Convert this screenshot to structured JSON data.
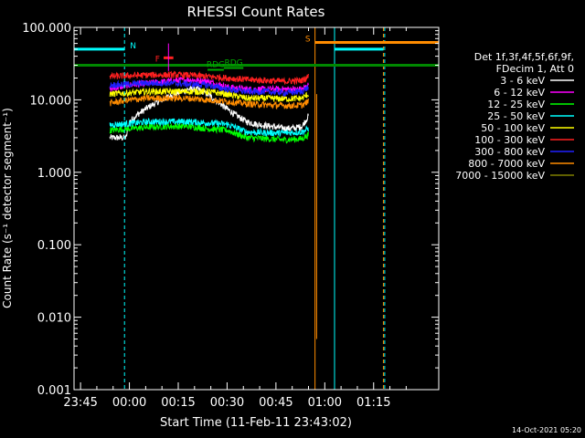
{
  "chart_data": {
    "type": "line",
    "title": "RHESSI Count Rates",
    "xlabel": "Start Time (11-Feb-11 23:43:02)",
    "ylabel": "Count Rate (s⁻¹ detector segment⁻¹)",
    "yscale": "log",
    "ylim": [
      0.001,
      100
    ],
    "xlim_min": [
      -17,
      95
    ],
    "x_tick_labels": [
      {
        "t": -15,
        "label": "23:45"
      },
      {
        "t": 0,
        "label": "00:00"
      },
      {
        "t": 15,
        "label": "00:15"
      },
      {
        "t": 30,
        "label": "00:30"
      },
      {
        "t": 45,
        "label": "00:45"
      },
      {
        "t": 60,
        "label": "01:00"
      },
      {
        "t": 75,
        "label": "01:15"
      }
    ],
    "y_tick_labels": [
      {
        "v": 0.001,
        "label": "0.001"
      },
      {
        "v": 0.01,
        "label": "0.010"
      },
      {
        "v": 0.1,
        "label": "0.100"
      },
      {
        "v": 1,
        "label": "1.000"
      },
      {
        "v": 10,
        "label": "10.000"
      },
      {
        "v": 100,
        "label": "100.000"
      }
    ],
    "legend_header": [
      "Det 1f,3f,4f,5f,6f,9f,",
      "FDecim 1, Att 0"
    ],
    "legend_position": "right",
    "series": [
      {
        "name": "3 - 6 keV",
        "color": "#ffffff",
        "points": [
          [
            -6,
            3.0
          ],
          [
            -1,
            3.0
          ],
          [
            0,
            5.0
          ],
          [
            3,
            6.5
          ],
          [
            6,
            8.0
          ],
          [
            9,
            9.5
          ],
          [
            12,
            11
          ],
          [
            15,
            12.5
          ],
          [
            18,
            14
          ],
          [
            21,
            14
          ],
          [
            24,
            12
          ],
          [
            27,
            9.5
          ],
          [
            30,
            7.5
          ],
          [
            33,
            6.0
          ],
          [
            36,
            5.0
          ],
          [
            39,
            4.6
          ],
          [
            42,
            4.4
          ],
          [
            45,
            4.2
          ],
          [
            48,
            4.0
          ],
          [
            51,
            4.1
          ],
          [
            53,
            4.3
          ],
          [
            55,
            6.0
          ]
        ]
      },
      {
        "name": "6 - 12 keV",
        "color": "#ff00ff",
        "points": [
          [
            -6,
            14
          ],
          [
            0,
            16
          ],
          [
            6,
            17
          ],
          [
            12,
            18
          ],
          [
            18,
            19
          ],
          [
            24,
            18
          ],
          [
            30,
            15
          ],
          [
            36,
            14
          ],
          [
            42,
            14
          ],
          [
            48,
            14
          ],
          [
            53,
            14
          ],
          [
            55,
            16
          ]
        ]
      },
      {
        "name": "12 - 25 keV",
        "color": "#00ff00",
        "points": [
          [
            -6,
            3.8
          ],
          [
            0,
            4.0
          ],
          [
            6,
            4.2
          ],
          [
            12,
            4.3
          ],
          [
            18,
            4.3
          ],
          [
            24,
            4.0
          ],
          [
            30,
            3.8
          ],
          [
            36,
            3.0
          ],
          [
            42,
            2.9
          ],
          [
            48,
            2.8
          ],
          [
            53,
            2.9
          ],
          [
            55,
            3.3
          ]
        ]
      },
      {
        "name": "25 - 50 keV",
        "color": "#00ffff",
        "points": [
          [
            -6,
            4.5
          ],
          [
            0,
            4.7
          ],
          [
            6,
            5.0
          ],
          [
            12,
            5.0
          ],
          [
            18,
            5.0
          ],
          [
            24,
            4.8
          ],
          [
            30,
            4.6
          ],
          [
            36,
            3.6
          ],
          [
            42,
            3.5
          ],
          [
            48,
            3.5
          ],
          [
            53,
            3.6
          ],
          [
            55,
            4.0
          ]
        ]
      },
      {
        "name": "50 - 100 keV",
        "color": "#ffff00",
        "points": [
          [
            -6,
            12
          ],
          [
            0,
            12.5
          ],
          [
            6,
            13
          ],
          [
            12,
            13
          ],
          [
            18,
            13
          ],
          [
            24,
            13
          ],
          [
            30,
            12
          ],
          [
            36,
            10.5
          ],
          [
            42,
            10.5
          ],
          [
            48,
            10.3
          ],
          [
            53,
            10.5
          ],
          [
            55,
            12
          ]
        ]
      },
      {
        "name": "100 - 300 keV",
        "color": "#ff2020",
        "points": [
          [
            -6,
            21
          ],
          [
            0,
            21.5
          ],
          [
            6,
            22
          ],
          [
            12,
            22
          ],
          [
            18,
            22
          ],
          [
            24,
            21
          ],
          [
            30,
            20
          ],
          [
            36,
            19
          ],
          [
            42,
            18.5
          ],
          [
            48,
            18
          ],
          [
            53,
            18.5
          ],
          [
            55,
            21
          ]
        ]
      },
      {
        "name": "300 - 800 keV",
        "color": "#2020ff",
        "points": [
          [
            -6,
            16
          ],
          [
            0,
            16.5
          ],
          [
            6,
            17
          ],
          [
            12,
            17
          ],
          [
            18,
            16.5
          ],
          [
            24,
            16
          ],
          [
            30,
            14
          ],
          [
            36,
            13
          ],
          [
            42,
            13
          ],
          [
            48,
            12.5
          ],
          [
            53,
            13
          ],
          [
            55,
            15
          ]
        ]
      },
      {
        "name": "800 - 7000 keV",
        "color": "#ff8c00",
        "points": [
          [
            -6,
            9
          ],
          [
            0,
            10
          ],
          [
            6,
            10.5
          ],
          [
            12,
            10.5
          ],
          [
            18,
            10.5
          ],
          [
            24,
            10
          ],
          [
            30,
            9.5
          ],
          [
            36,
            8.8
          ],
          [
            42,
            8.5
          ],
          [
            48,
            8.3
          ],
          [
            53,
            8.4
          ],
          [
            55,
            9.5
          ]
        ]
      },
      {
        "name": "7000 - 15000 keV",
        "color": "#808000",
        "points": []
      }
    ],
    "annotations": [
      {
        "label": "N",
        "color": "#00ffff",
        "x_start": -17,
        "x_end": -1.5,
        "y": 50
      },
      {
        "label": "F",
        "color": "#ff2020",
        "x_start": 10.5,
        "x_end": 13.5,
        "y": 38
      },
      {
        "label": "S",
        "color": "#ff8c00",
        "x_start": 57,
        "x_end": 95,
        "y": 62
      },
      {
        "label": "RDG",
        "color": "#00aa00",
        "x_start": 24,
        "x_end": 29,
        "y": 26
      },
      {
        "label": "RDG",
        "color": "#00aa00",
        "x_start": 29,
        "x_end": 35,
        "y": 27.5
      }
    ],
    "footer_date": "14-Oct-2021 05:20",
    "grid": false
  }
}
